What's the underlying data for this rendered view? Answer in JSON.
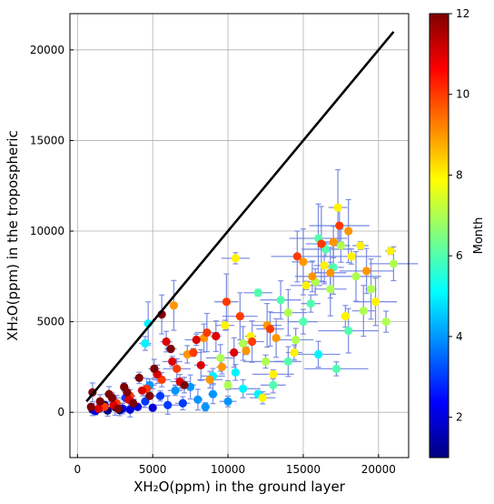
{
  "chart_data": {
    "type": "scatter",
    "title": "",
    "xlabel": "XH₂O(ppm) in the ground layer",
    "ylabel": "XH₂O(ppm) in the tropospheric",
    "xlim": [
      -500,
      22000
    ],
    "ylim": [
      -2500,
      22000
    ],
    "xticks": [
      0,
      5000,
      10000,
      15000,
      20000
    ],
    "yticks": [
      0,
      5000,
      10000,
      15000,
      20000
    ],
    "grid": true,
    "reference_line": {
      "x": [
        600,
        21000
      ],
      "y": [
        600,
        21000
      ],
      "color": "#000000"
    },
    "colorbar": {
      "label": "Month",
      "min": 1,
      "max": 12,
      "ticks": [
        2,
        4,
        6,
        8,
        10,
        12
      ],
      "colormap": [
        "#00007f",
        "#0000ff",
        "#007fff",
        "#00ffff",
        "#7fff7f",
        "#ffff00",
        "#ff7f00",
        "#ff0000",
        "#7f0000"
      ]
    },
    "errorbar_color": "#6d7fe0",
    "points": [
      [
        1000,
        150,
        1
      ],
      [
        1500,
        250,
        1
      ],
      [
        2000,
        100,
        1
      ],
      [
        2500,
        300,
        1
      ],
      [
        3000,
        200,
        2
      ],
      [
        3500,
        150,
        2
      ],
      [
        4000,
        300,
        2
      ],
      [
        1200,
        80,
        2
      ],
      [
        1800,
        400,
        1
      ],
      [
        2800,
        120,
        1
      ],
      [
        5000,
        250,
        2
      ],
      [
        6000,
        400,
        3
      ],
      [
        4500,
        600,
        3
      ],
      [
        3200,
        800,
        3
      ],
      [
        7000,
        500,
        3
      ],
      [
        5500,
        900,
        3
      ],
      [
        8000,
        700,
        4
      ],
      [
        6500,
        1200,
        4
      ],
      [
        4800,
        1500,
        4
      ],
      [
        9000,
        1000,
        4
      ],
      [
        10000,
        600,
        4
      ],
      [
        7500,
        1400,
        4
      ],
      [
        4700,
        4900,
        5
      ],
      [
        4500,
        3800,
        5
      ],
      [
        9000,
        2000,
        5
      ],
      [
        11000,
        1300,
        5
      ],
      [
        8500,
        300,
        4
      ],
      [
        12000,
        1000,
        5
      ],
      [
        10500,
        2200,
        5
      ],
      [
        16000,
        3200,
        5
      ],
      [
        17200,
        2400,
        6
      ],
      [
        13000,
        1500,
        6
      ],
      [
        14000,
        2800,
        6
      ],
      [
        15000,
        5000,
        6
      ],
      [
        15500,
        6000,
        6
      ],
      [
        16500,
        9000,
        6
      ],
      [
        17000,
        8000,
        6
      ],
      [
        18000,
        4500,
        6
      ],
      [
        16000,
        9600,
        6
      ],
      [
        13500,
        6200,
        6
      ],
      [
        12000,
        6600,
        6
      ],
      [
        15800,
        7200,
        7
      ],
      [
        17500,
        9200,
        7
      ],
      [
        18500,
        7500,
        7
      ],
      [
        19000,
        5600,
        7
      ],
      [
        20500,
        5000,
        7
      ],
      [
        21000,
        8200,
        7
      ],
      [
        19500,
        6800,
        7
      ],
      [
        16800,
        6800,
        7
      ],
      [
        14500,
        4000,
        7
      ],
      [
        11000,
        3800,
        7
      ],
      [
        12500,
        2800,
        7
      ],
      [
        10000,
        1500,
        7
      ],
      [
        9500,
        3000,
        7
      ],
      [
        14000,
        5500,
        7
      ],
      [
        17300,
        11300,
        8
      ],
      [
        18800,
        9200,
        8
      ],
      [
        20800,
        8900,
        8
      ],
      [
        19800,
        6100,
        8
      ],
      [
        18200,
        8600,
        8
      ],
      [
        15200,
        7000,
        8
      ],
      [
        16400,
        8100,
        8
      ],
      [
        17800,
        5300,
        8
      ],
      [
        14400,
        3300,
        8
      ],
      [
        13000,
        2100,
        8
      ],
      [
        11500,
        4200,
        8
      ],
      [
        10500,
        8500,
        8
      ],
      [
        9800,
        4800,
        8
      ],
      [
        12300,
        800,
        8
      ],
      [
        18000,
        10000,
        9
      ],
      [
        16800,
        7700,
        9
      ],
      [
        15000,
        8300,
        9
      ],
      [
        19200,
        7800,
        9
      ],
      [
        17000,
        9400,
        9
      ],
      [
        13200,
        4100,
        9
      ],
      [
        11200,
        3400,
        9
      ],
      [
        9600,
        2500,
        9
      ],
      [
        8400,
        4100,
        9
      ],
      [
        7300,
        3200,
        9
      ],
      [
        12600,
        4800,
        9
      ],
      [
        15600,
        7500,
        9
      ],
      [
        6400,
        5900,
        9
      ],
      [
        8800,
        1800,
        9
      ],
      [
        14600,
        8600,
        10
      ],
      [
        16200,
        9300,
        10
      ],
      [
        17400,
        10300,
        10
      ],
      [
        12800,
        4600,
        10
      ],
      [
        10800,
        5300,
        10
      ],
      [
        9900,
        6100,
        10
      ],
      [
        8600,
        4400,
        10
      ],
      [
        7700,
        3300,
        10
      ],
      [
        6600,
        2400,
        10
      ],
      [
        5600,
        1800,
        10
      ],
      [
        4600,
        1300,
        10
      ],
      [
        3500,
        900,
        10
      ],
      [
        2600,
        500,
        10
      ],
      [
        1800,
        300,
        10
      ],
      [
        11600,
        3900,
        10
      ],
      [
        7900,
        4000,
        11
      ],
      [
        6300,
        2800,
        11
      ],
      [
        5300,
        2100,
        11
      ],
      [
        4300,
        1200,
        11
      ],
      [
        3400,
        700,
        11
      ],
      [
        2400,
        400,
        11
      ],
      [
        9200,
        4200,
        11
      ],
      [
        10400,
        3300,
        11
      ],
      [
        8200,
        2600,
        11
      ],
      [
        6800,
        1700,
        11
      ],
      [
        1400,
        200,
        11
      ],
      [
        5900,
        3900,
        11
      ],
      [
        2100,
        1000,
        12
      ],
      [
        3100,
        1400,
        12
      ],
      [
        4100,
        1900,
        12
      ],
      [
        5100,
        2400,
        12
      ],
      [
        6200,
        3500,
        12
      ],
      [
        1000,
        1100,
        12
      ],
      [
        1500,
        600,
        12
      ],
      [
        2700,
        200,
        12
      ],
      [
        3700,
        500,
        12
      ],
      [
        900,
        300,
        12
      ],
      [
        5600,
        5400,
        12
      ],
      [
        4800,
        900,
        12
      ],
      [
        2300,
        800,
        12
      ],
      [
        3300,
        1100,
        12
      ],
      [
        7100,
        1500,
        12
      ]
    ]
  }
}
